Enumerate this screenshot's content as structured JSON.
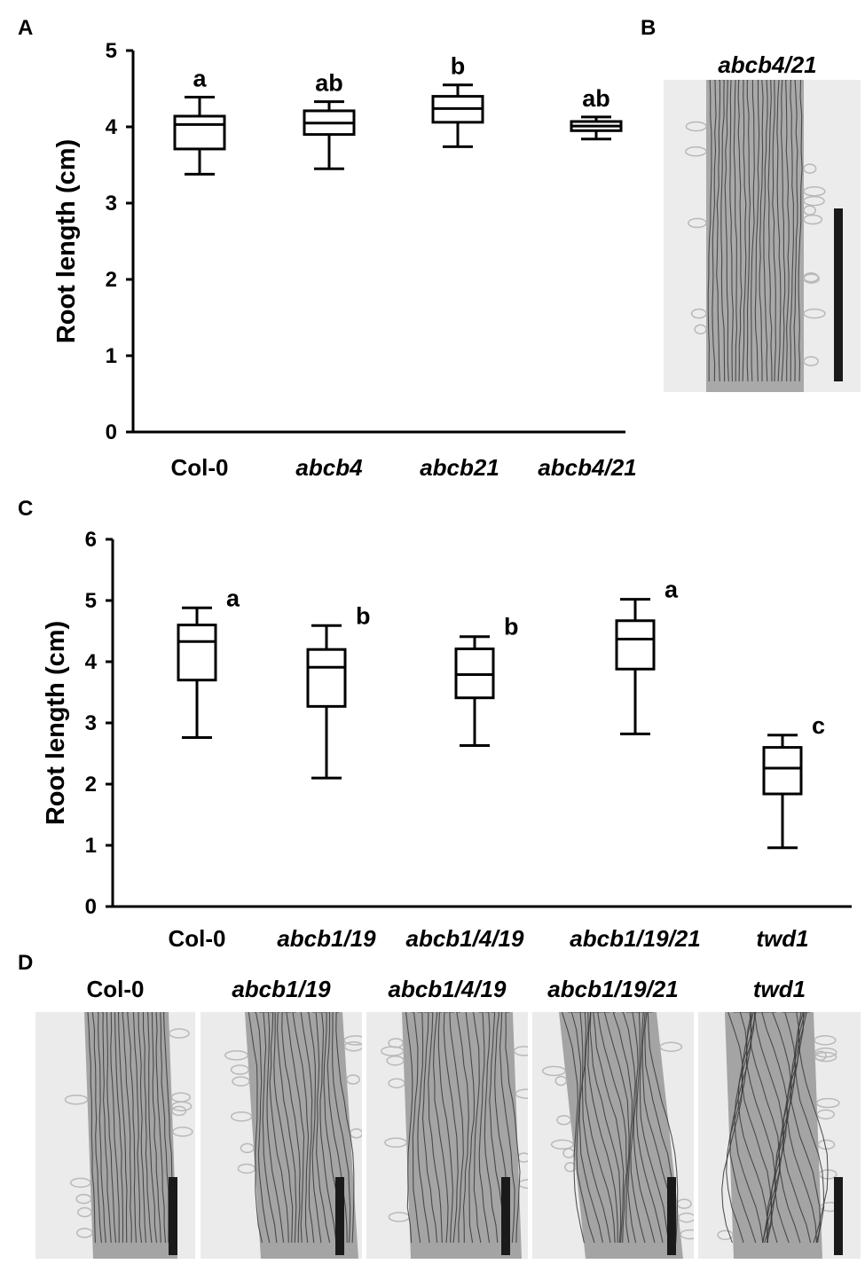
{
  "panels": {
    "A": {
      "label": "A",
      "chart_data": {
        "type": "box",
        "ylabel": "Root length (cm)",
        "ylim": [
          0,
          5
        ],
        "yticks": [
          0,
          1,
          2,
          3,
          4,
          5
        ],
        "categories": [
          "Col-0",
          "abcb4",
          "abcb21",
          "abcb4/21"
        ],
        "italic_categories": [
          false,
          true,
          true,
          true
        ],
        "boxes": [
          {
            "min": 3.38,
            "q1": 3.71,
            "median": 4.03,
            "q3": 4.14,
            "max": 4.39,
            "letter": "a"
          },
          {
            "min": 3.45,
            "q1": 3.9,
            "median": 4.05,
            "q3": 4.21,
            "max": 4.33,
            "letter": "ab"
          },
          {
            "min": 3.74,
            "q1": 4.06,
            "median": 4.24,
            "q3": 4.4,
            "max": 4.55,
            "letter": "b"
          },
          {
            "min": 3.84,
            "q1": 3.95,
            "median": 4.01,
            "q3": 4.07,
            "max": 4.13,
            "letter": "ab"
          }
        ]
      }
    },
    "B": {
      "label": "B",
      "photo_label": "abcb4/21"
    },
    "C": {
      "label": "C",
      "chart_data": {
        "type": "box",
        "ylabel": "Root length (cm)",
        "ylim": [
          0,
          6
        ],
        "yticks": [
          0,
          1,
          2,
          3,
          4,
          5,
          6
        ],
        "categories": [
          "Col-0",
          "abcb1/19",
          "abcb1/4/19",
          "abcb1/19/21",
          "twd1"
        ],
        "italic_categories": [
          false,
          true,
          true,
          true,
          true
        ],
        "boxes": [
          {
            "min": 2.76,
            "q1": 3.7,
            "median": 4.33,
            "q3": 4.6,
            "max": 4.88,
            "letter": "a"
          },
          {
            "min": 2.1,
            "q1": 3.27,
            "median": 3.91,
            "q3": 4.2,
            "max": 4.59,
            "letter": "b"
          },
          {
            "min": 2.63,
            "q1": 3.41,
            "median": 3.79,
            "q3": 4.21,
            "max": 4.41,
            "letter": "b"
          },
          {
            "min": 2.82,
            "q1": 3.88,
            "median": 4.37,
            "q3": 4.67,
            "max": 5.02,
            "letter": "a"
          },
          {
            "min": 0.96,
            "q1": 1.84,
            "median": 2.26,
            "q3": 2.6,
            "max": 2.8,
            "letter": "c"
          }
        ]
      }
    },
    "D": {
      "label": "D",
      "photos": [
        {
          "label": "Col-0",
          "italic": false
        },
        {
          "label": "abcb1/19",
          "italic": true
        },
        {
          "label": "abcb1/4/19",
          "italic": true
        },
        {
          "label": "abcb1/19/21",
          "italic": true
        },
        {
          "label": "twd1",
          "italic": true
        }
      ]
    }
  }
}
